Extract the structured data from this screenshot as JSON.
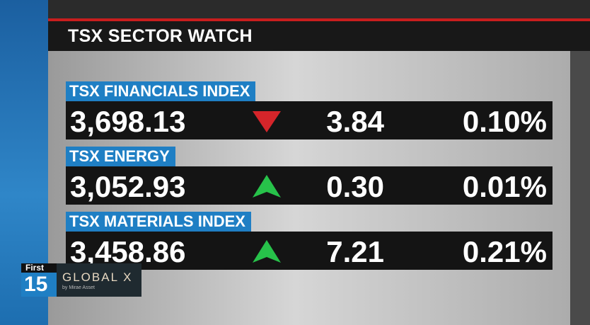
{
  "header": {
    "title": "TSX SECTOR WATCH"
  },
  "rows": [
    {
      "name": "TSX FINANCIALS INDEX",
      "value": "3,698.13",
      "direction": "down",
      "change": "3.84",
      "percent": "0.10%"
    },
    {
      "name": "TSX ENERGY",
      "value": "3,052.93",
      "direction": "up",
      "change": "0.30",
      "percent": "0.01%"
    },
    {
      "name": "TSX MATERIALS INDEX",
      "value": "3,458.86",
      "direction": "up",
      "change": "7.21",
      "percent": "0.21%"
    }
  ],
  "logo": {
    "show": "First",
    "number": "15",
    "brand": "GLOBAL X",
    "tagline": "by Mirae Asset"
  }
}
